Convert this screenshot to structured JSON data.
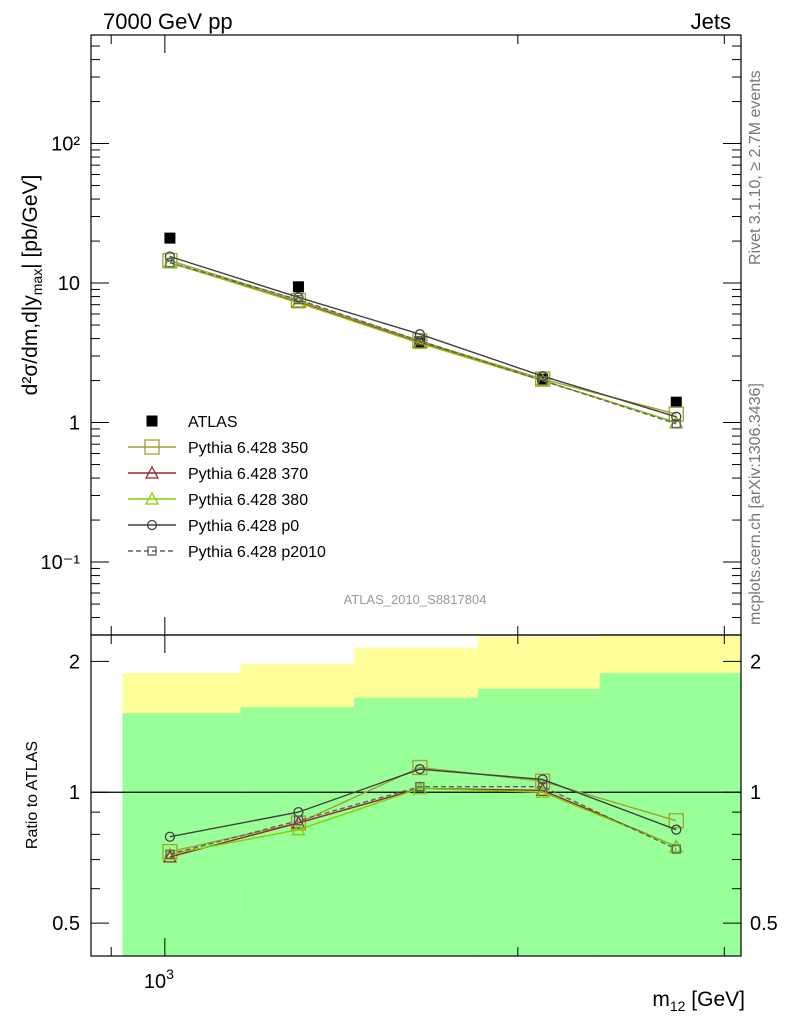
{
  "header": {
    "left_text": "7000 GeV pp",
    "right_text": "Jets"
  },
  "side_labels": {
    "rivet": "Rivet 3.1.10, ≥ 2.7M events",
    "mcplots": "mcplots.cern.ch [arXiv:1306.3436]"
  },
  "analysis_id": "ATLAS_2010_S8817804",
  "chart_data": [
    {
      "panel": "main",
      "type": "line",
      "y_scale": "log",
      "x_scale": "log",
      "ylabel": "d²σ/dm,d|y_max| [pb/GeV]",
      "ylim": [
        0.03,
        600
      ],
      "yticks": [
        {
          "value": 0.1,
          "label": "10⁻¹"
        },
        {
          "value": 1,
          "label": "1"
        },
        {
          "value": 10,
          "label": "10"
        },
        {
          "value": 100,
          "label": "10²"
        }
      ],
      "x": [
        1010,
        1300,
        1650,
        2100,
        2730
      ],
      "legend_position": "middle-left",
      "series": [
        {
          "name": "ATLAS",
          "color": "#000000",
          "marker": "filled-square",
          "line": "none",
          "values": [
            21,
            9.4,
            3.8,
            2.05,
            1.4
          ]
        },
        {
          "name": "Pythia 6.428 350",
          "color": "#a0a030",
          "marker": "open-square",
          "line": "solid",
          "values": [
            14.5,
            7.5,
            3.85,
            2.05,
            1.15
          ]
        },
        {
          "name": "Pythia 6.428 370",
          "color": "#a02030",
          "marker": "open-triangle",
          "line": "solid",
          "values": [
            14.0,
            7.3,
            3.75,
            2.0,
            1.0
          ]
        },
        {
          "name": "Pythia 6.428 380",
          "color": "#80d000",
          "marker": "open-triangle",
          "line": "solid",
          "values": [
            14.0,
            7.2,
            3.7,
            2.0,
            1.0
          ]
        },
        {
          "name": "Pythia 6.428 p0",
          "color": "#404040",
          "marker": "open-circle",
          "line": "solid",
          "values": [
            15.5,
            7.9,
            4.3,
            2.15,
            1.1
          ]
        },
        {
          "name": "Pythia 6.428 p2010",
          "color": "#606060",
          "marker": "open-square-small",
          "line": "dashed",
          "values": [
            14.0,
            7.6,
            3.85,
            2.0,
            0.98
          ]
        }
      ]
    },
    {
      "panel": "ratio",
      "type": "line",
      "y_scale": "log",
      "ylabel": "Ratio to ATLAS",
      "xlabel": "m₁₂ [GeV]",
      "ylim": [
        0.42,
        2.3
      ],
      "yticks": [
        {
          "value": 0.5,
          "label": "0.5"
        },
        {
          "value": 1,
          "label": "1"
        },
        {
          "value": 2,
          "label": "2"
        }
      ],
      "xticks": [
        {
          "value": 1000,
          "label": "10³"
        }
      ],
      "x": [
        1010,
        1300,
        1650,
        2100,
        2730
      ],
      "bands": {
        "bin_edges": [
          920,
          1160,
          1450,
          1850,
          2350,
          3100
        ],
        "yellow_low": [
          0.62,
          0.52,
          0.42,
          0.42,
          0.42
        ],
        "yellow_high": [
          1.88,
          1.97,
          2.15,
          2.28,
          2.3
        ],
        "green_low": [
          0.42,
          0.42,
          0.42,
          0.42,
          0.42
        ],
        "green_high": [
          1.52,
          1.57,
          1.65,
          1.73,
          1.88
        ],
        "yellow_color": "#ffff99",
        "green_color": "#99ff99"
      },
      "series": [
        {
          "name": "Pythia 6.428 350",
          "color": "#a0a030",
          "marker": "open-square",
          "line": "solid",
          "values": [
            0.73,
            0.85,
            1.14,
            1.06,
            0.86
          ]
        },
        {
          "name": "Pythia 6.428 370",
          "color": "#a02030",
          "marker": "open-triangle",
          "line": "solid",
          "values": [
            0.71,
            0.85,
            1.02,
            1.01,
            0.75
          ]
        },
        {
          "name": "Pythia 6.428 380",
          "color": "#80d000",
          "marker": "open-triangle",
          "line": "solid",
          "values": [
            0.72,
            0.82,
            1.02,
            1.0,
            0.75
          ]
        },
        {
          "name": "Pythia 6.428 p0",
          "color": "#404040",
          "marker": "open-circle",
          "line": "solid",
          "values": [
            0.79,
            0.9,
            1.13,
            1.07,
            0.82
          ]
        },
        {
          "name": "Pythia 6.428 p2010",
          "color": "#606060",
          "marker": "open-square-small",
          "line": "dashed",
          "values": [
            0.72,
            0.86,
            1.03,
            1.03,
            0.74
          ]
        }
      ]
    }
  ]
}
